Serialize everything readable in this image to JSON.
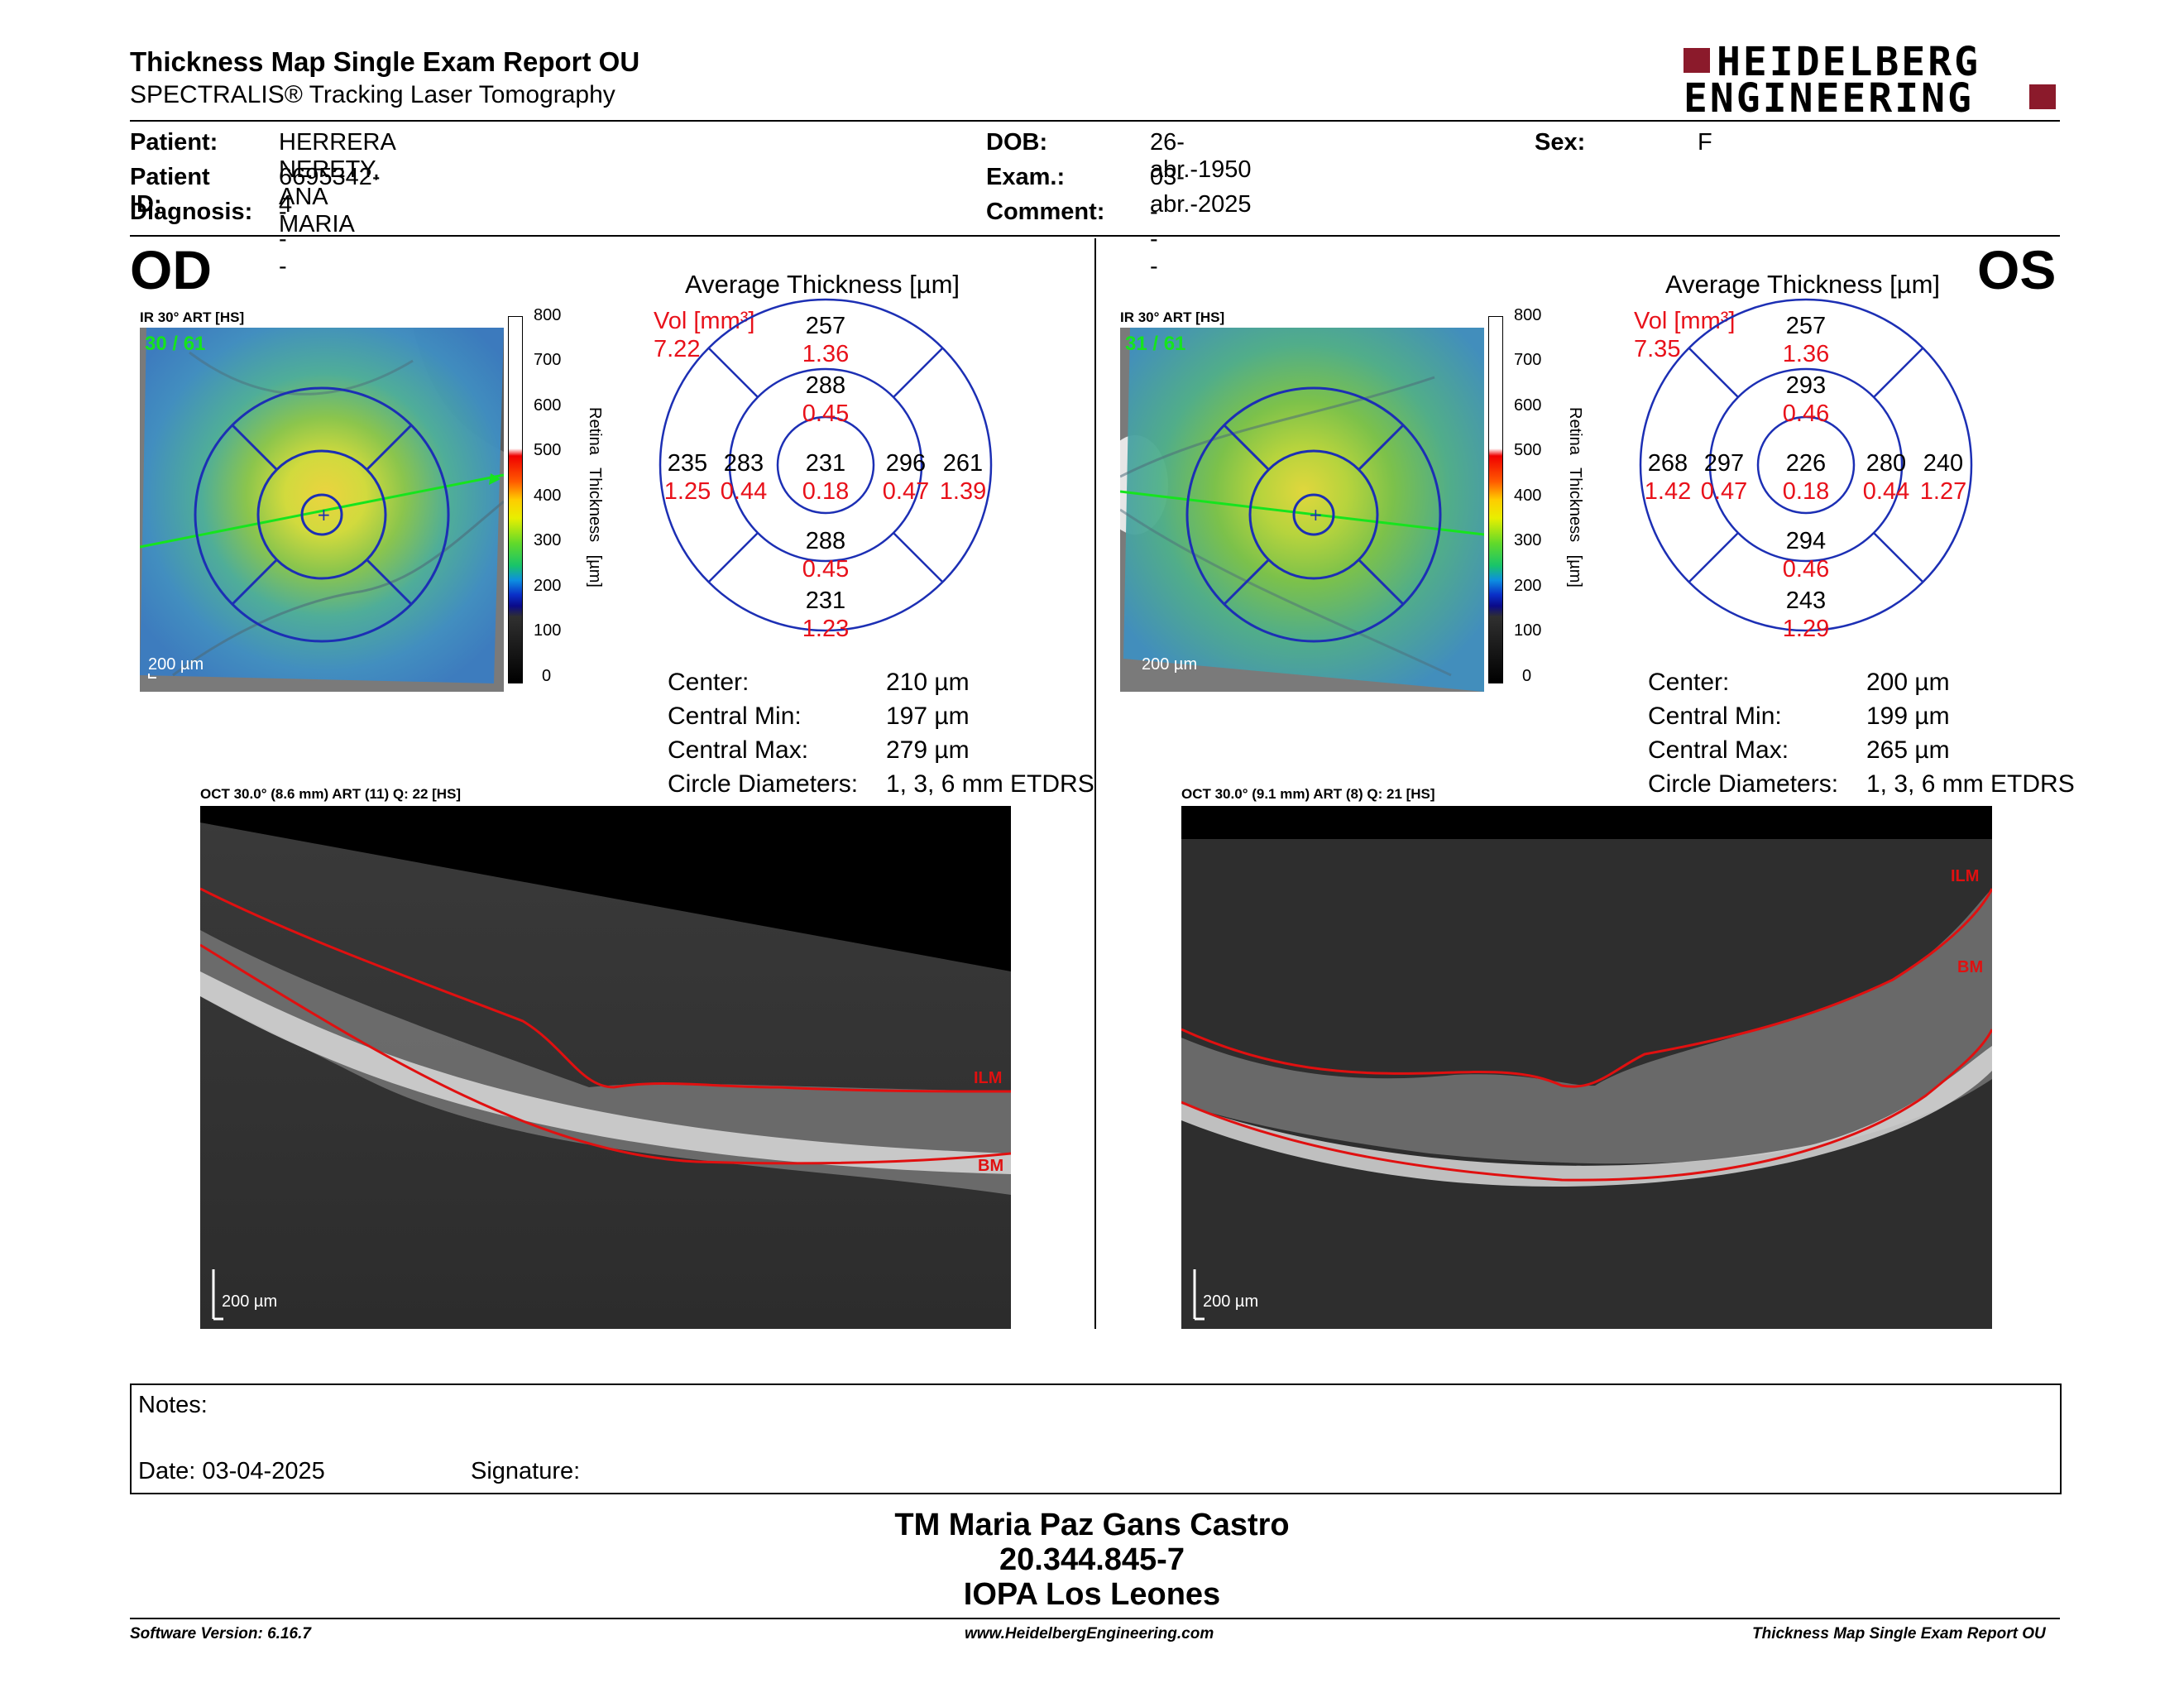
{
  "header": {
    "title": "Thickness Map Single Exam Report OU",
    "subtitle": "SPECTRALIS® Tracking Laser Tomography",
    "logo_line1": "HEIDELBERG",
    "logo_line2": "ENGINEERING",
    "brand_color": "#8b1a2b"
  },
  "patient": {
    "patient_label": "Patient:",
    "patient_value": "HERRERA NERETY, ANA MARIA",
    "id_label": "Patient ID:",
    "id_value": "6695342-4",
    "diagnosis_label": "Diagnosis:",
    "diagnosis_value": "---",
    "dob_label": "DOB:",
    "dob_value": "26-abr.-1950",
    "exam_label": "Exam.:",
    "exam_value": "03-abr.-2025",
    "comment_label": "Comment:",
    "comment_value": "---",
    "sex_label": "Sex:",
    "sex_value": "F"
  },
  "od": {
    "eye": "OD",
    "ir_caption": "IR 30° ART [HS]",
    "frame_count": "30 / 61",
    "scale_label": "200 µm",
    "colorbar_title": "Retina Thickness [µm]",
    "colorbar_ticks": [
      "800",
      "700",
      "600",
      "500",
      "400",
      "300",
      "200",
      "100",
      "0"
    ],
    "avg_title": "Average Thickness [µm]",
    "vol_label": "Vol [mm³]",
    "vol_total": "7.22",
    "sectors": {
      "center": {
        "t": "231",
        "v": "0.18"
      },
      "inner_sup": {
        "t": "288",
        "v": "0.45"
      },
      "inner_inf": {
        "t": "288",
        "v": "0.45"
      },
      "inner_left": {
        "t": "283",
        "v": "0.44"
      },
      "inner_right": {
        "t": "296",
        "v": "0.47"
      },
      "outer_sup": {
        "t": "257",
        "v": "1.36"
      },
      "outer_inf": {
        "t": "231",
        "v": "1.23"
      },
      "outer_left": {
        "t": "235",
        "v": "1.25"
      },
      "outer_right": {
        "t": "261",
        "v": "1.39"
      }
    },
    "stats": [
      {
        "label": "Center:",
        "value": "210 µm"
      },
      {
        "label": "Central Min:",
        "value": "197 µm"
      },
      {
        "label": "Central Max:",
        "value": "279 µm"
      },
      {
        "label": "Circle Diameters:",
        "value": "1, 3, 6 mm ETDRS"
      }
    ],
    "oct_caption": "OCT 30.0° (8.6 mm) ART (11) Q: 22 [HS]",
    "ilm": "ILM",
    "bm": "BM",
    "oct_scale": "200 µm"
  },
  "os": {
    "eye": "OS",
    "ir_caption": "IR 30° ART [HS]",
    "frame_count": "31 / 61",
    "scale_label": "200 µm",
    "colorbar_title": "Retina Thickness [µm]",
    "colorbar_ticks": [
      "800",
      "700",
      "600",
      "500",
      "400",
      "300",
      "200",
      "100",
      "0"
    ],
    "avg_title": "Average Thickness [µm]",
    "vol_label": "Vol [mm³]",
    "vol_total": "7.35",
    "sectors": {
      "center": {
        "t": "226",
        "v": "0.18"
      },
      "inner_sup": {
        "t": "293",
        "v": "0.46"
      },
      "inner_inf": {
        "t": "294",
        "v": "0.46"
      },
      "inner_left": {
        "t": "297",
        "v": "0.47"
      },
      "inner_right": {
        "t": "280",
        "v": "0.44"
      },
      "outer_sup": {
        "t": "257",
        "v": "1.36"
      },
      "outer_inf": {
        "t": "243",
        "v": "1.29"
      },
      "outer_left": {
        "t": "268",
        "v": "1.42"
      },
      "outer_right": {
        "t": "240",
        "v": "1.27"
      }
    },
    "stats": [
      {
        "label": "Center:",
        "value": "200 µm"
      },
      {
        "label": "Central Min:",
        "value": "199 µm"
      },
      {
        "label": "Central Max:",
        "value": "265 µm"
      },
      {
        "label": "Circle Diameters:",
        "value": "1, 3, 6 mm ETDRS"
      }
    ],
    "oct_caption": "OCT 30.0° (9.1 mm) ART (8) Q: 21 [HS]",
    "ilm": "ILM",
    "bm": "BM",
    "oct_scale": "200 µm"
  },
  "notes": {
    "notes_label": "Notes:",
    "date_label": "Date: 03-04-2025",
    "signature_label": "Signature:"
  },
  "signoff": {
    "name": "TM Maria Paz Gans Castro",
    "rut": "20.344.845-7",
    "institution": "IOPA Los Leones"
  },
  "footer": {
    "software": "Software Version: 6.16.7",
    "website": "www.HeidelbergEngineering.com",
    "report": "Thickness Map Single Exam Report OU"
  },
  "colors": {
    "volume_red": "#e8111a",
    "grid_blue": "#1c2fb4",
    "scan_green": "#16e41e",
    "boundary_red": "#e01010"
  }
}
